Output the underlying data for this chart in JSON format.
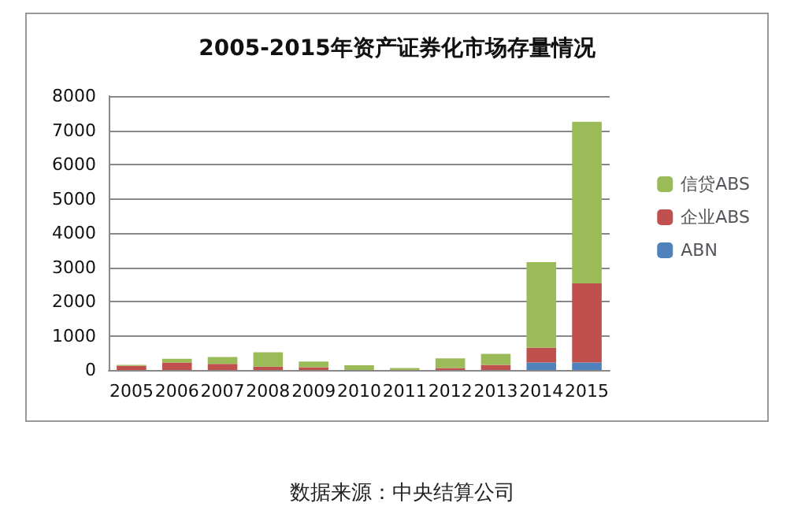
{
  "chart_data": {
    "type": "bar",
    "title": "2005-2015年资产证券化市场存量情况",
    "categories": [
      "2005",
      "2006",
      "2007",
      "2008",
      "2009",
      "2010",
      "2011",
      "2012",
      "2013",
      "2014",
      "2015"
    ],
    "stacked": true,
    "series": [
      {
        "name": "ABN",
        "color": "#4f81bd",
        "values": [
          0,
          0,
          0,
          0,
          0,
          0,
          0,
          null,
          null,
          220,
          220
        ]
      },
      {
        "name": "企业ABS",
        "color": "#c0504d",
        "values": [
          120,
          220,
          180,
          100,
          80,
          null,
          null,
          60,
          150,
          430,
          2310
        ]
      },
      {
        "name": "信贷ABS",
        "color": "#9bbb59",
        "values": [
          30,
          110,
          200,
          420,
          170,
          140,
          60,
          280,
          320,
          2500,
          4720
        ]
      }
    ],
    "ylim": [
      0,
      8000
    ],
    "yticks": [
      0,
      1000,
      2000,
      3000,
      4000,
      5000,
      6000,
      7000,
      8000
    ],
    "grid": "y",
    "legend": "right",
    "annotations": [
      "数据来源：中央结算公司"
    ]
  }
}
